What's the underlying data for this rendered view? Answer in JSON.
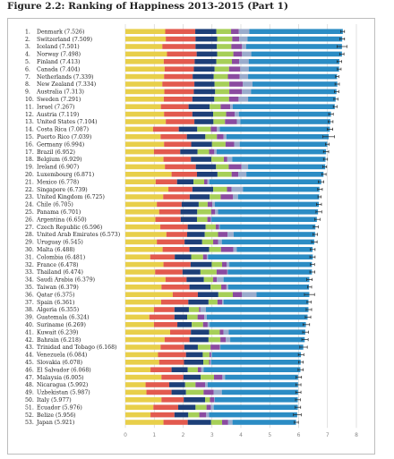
{
  "figure_title": "Figure 2.2: Ranking of Happiness 2013-2015 (Part 1)",
  "colors": {
    "segments": [
      "#e8cf4a",
      "#e25a4e",
      "#1d3f78",
      "#a6cf58",
      "#8a4ba0",
      "#9aaccc",
      "#2b8cc4"
    ],
    "error_bar": "#222222",
    "gridline": "#cccccc"
  },
  "chart_data": {
    "type": "bar",
    "orientation": "horizontal",
    "stacked": true,
    "title": "Ranking of Happiness 2013-2015 (Part 1)",
    "xlim": [
      0,
      8
    ],
    "x_ticks": [
      "0",
      "1",
      "2",
      "3",
      "4",
      "5",
      "6",
      "7",
      "8"
    ],
    "grid": true,
    "legend": "none",
    "ranks": [
      "1.",
      "2.",
      "3.",
      "4.",
      "5.",
      "6.",
      "7.",
      "8.",
      "9.",
      "10.",
      "11.",
      "12.",
      "13.",
      "14.",
      "15.",
      "16.",
      "17.",
      "18.",
      "19.",
      "20.",
      "21.",
      "22.",
      "23.",
      "24.",
      "25.",
      "26.",
      "27.",
      "28.",
      "29.",
      "30.",
      "31.",
      "32.",
      "33.",
      "34.",
      "35.",
      "36.",
      "37.",
      "38.",
      "39.",
      "40.",
      "41.",
      "42.",
      "43.",
      "44.",
      "45.",
      "46.",
      "47.",
      "48.",
      "49.",
      "50.",
      "51.",
      "52.",
      "53."
    ],
    "categories": [
      "Denmark (7.526)",
      "Switzerland (7.509)",
      "Iceland (7.501)",
      "Norway (7.498)",
      "Finland (7.413)",
      "Canada (7.404)",
      "Netherlands (7.339)",
      "New Zealand (7.334)",
      "Australia (7.313)",
      "Sweden (7.291)",
      "Israel (7.267)",
      "Austria (7.119)",
      "United States (7.104)",
      "Costa Rica (7.087)",
      "Puerto Rico (7.039)",
      "Germany (6.994)",
      "Brazil (6.952)",
      "Belgium (6.929)",
      "Ireland (6.907)",
      "Luxembourg (6.871)",
      "Mexico (6.778)",
      "Singapore (6.739)",
      "United Kingdom (6.725)",
      "Chile (6.705)",
      "Panama (6.701)",
      "Argentina (6.650)",
      "Czech Republic (6.596)",
      "United Arab Emirates (6.573)",
      "Uruguay (6.545)",
      "Malta (6.488)",
      "Colombia (6.481)",
      "France (6.478)",
      "Thailand (6.474)",
      "Saudi Arabia (6.379)",
      "Taiwan (6.379)",
      "Qatar (6.375)",
      "Spain (6.361)",
      "Algeria (6.355)",
      "Guatemala (6.324)",
      "Suriname (6.269)",
      "Kuwait (6.239)",
      "Bahrain (6.218)",
      "Trinidad and Tobago (6.168)",
      "Venezuela (6.084)",
      "Slovakia (6.078)",
      "El Salvador (6.068)",
      "Malaysia (6.005)",
      "Nicaragua (5.992)",
      "Uzbekistan (5.987)",
      "Italy (5.977)",
      "Ecuador (5.976)",
      "Belize (5.956)",
      "Japan (5.921)"
    ],
    "values": [
      7.526,
      7.509,
      7.501,
      7.498,
      7.413,
      7.404,
      7.339,
      7.334,
      7.313,
      7.291,
      7.267,
      7.119,
      7.104,
      7.087,
      7.039,
      6.994,
      6.952,
      6.929,
      6.907,
      6.871,
      6.778,
      6.739,
      6.725,
      6.705,
      6.701,
      6.65,
      6.596,
      6.573,
      6.545,
      6.488,
      6.481,
      6.478,
      6.474,
      6.379,
      6.379,
      6.375,
      6.361,
      6.355,
      6.324,
      6.269,
      6.239,
      6.218,
      6.168,
      6.084,
      6.078,
      6.068,
      6.005,
      5.992,
      5.987,
      5.977,
      5.976,
      5.956,
      5.921
    ],
    "segments": [
      [
        1.38,
        1.04,
        0.73,
        0.51,
        0.27,
        0.36,
        3.24
      ],
      [
        1.4,
        1.03,
        0.75,
        0.52,
        0.24,
        0.29,
        3.28
      ],
      [
        1.28,
        1.15,
        0.74,
        0.5,
        0.37,
        0.14,
        3.32
      ],
      [
        1.44,
        1.03,
        0.71,
        0.56,
        0.3,
        0.32,
        3.14
      ],
      [
        1.33,
        1.07,
        0.75,
        0.54,
        0.25,
        0.33,
        3.14
      ],
      [
        1.36,
        1.01,
        0.72,
        0.5,
        0.39,
        0.29,
        3.13
      ],
      [
        1.34,
        0.99,
        0.73,
        0.49,
        0.41,
        0.29,
        3.08
      ],
      [
        1.28,
        1.11,
        0.7,
        0.51,
        0.47,
        0.33,
        2.94
      ],
      [
        1.35,
        1.02,
        0.74,
        0.49,
        0.44,
        0.31,
        2.96
      ],
      [
        1.33,
        0.99,
        0.76,
        0.51,
        0.33,
        0.33,
        3.03
      ],
      [
        1.23,
        0.96,
        0.73,
        0.38,
        0.33,
        0.09,
        3.53
      ],
      [
        1.34,
        0.98,
        0.72,
        0.45,
        0.3,
        0.14,
        3.19
      ],
      [
        1.4,
        0.99,
        0.66,
        0.4,
        0.41,
        0.12,
        3.12
      ],
      [
        0.96,
        0.89,
        0.64,
        0.47,
        0.21,
        0.1,
        3.81
      ],
      [
        1.22,
        0.91,
        0.64,
        0.4,
        0.23,
        0.1,
        3.54
      ],
      [
        1.34,
        0.94,
        0.72,
        0.47,
        0.3,
        0.19,
        3.03
      ],
      [
        0.99,
        0.91,
        0.6,
        0.4,
        0.18,
        0.08,
        3.79
      ],
      [
        1.32,
        0.95,
        0.71,
        0.43,
        0.12,
        0.17,
        3.23
      ],
      [
        1.37,
        1.07,
        0.7,
        0.44,
        0.44,
        0.23,
        2.67
      ],
      [
        1.6,
        0.88,
        0.71,
        0.49,
        0.23,
        0.28,
        2.67
      ],
      [
        1.05,
        0.74,
        0.57,
        0.37,
        0.11,
        0.07,
        3.87
      ],
      [
        1.49,
        0.83,
        0.72,
        0.48,
        0.16,
        0.39,
        2.65
      ],
      [
        1.31,
        0.92,
        0.69,
        0.38,
        0.43,
        0.17,
        2.81
      ],
      [
        1.09,
        0.86,
        0.59,
        0.31,
        0.16,
        0.09,
        3.6
      ],
      [
        1.17,
        0.74,
        0.58,
        0.48,
        0.14,
        0.1,
        3.46
      ],
      [
        1.04,
        0.88,
        0.56,
        0.36,
        0.12,
        0.02,
        3.65
      ],
      [
        1.21,
        0.95,
        0.62,
        0.35,
        0.11,
        0.03,
        3.31
      ],
      [
        1.42,
        0.72,
        0.61,
        0.46,
        0.33,
        0.21,
        2.82
      ],
      [
        1.09,
        0.96,
        0.61,
        0.38,
        0.17,
        0.13,
        3.2
      ],
      [
        1.29,
        0.93,
        0.68,
        0.41,
        0.43,
        0.12,
        2.62
      ],
      [
        0.86,
        0.85,
        0.57,
        0.41,
        0.13,
        0.04,
        3.63
      ],
      [
        1.32,
        0.94,
        0.73,
        0.36,
        0.16,
        0.09,
        2.86
      ],
      [
        1.03,
        0.95,
        0.62,
        0.56,
        0.37,
        0.02,
        2.91
      ],
      [
        1.39,
        0.73,
        0.6,
        0.32,
        0.13,
        0.23,
        2.97
      ],
      [
        1.25,
        0.97,
        0.73,
        0.37,
        0.18,
        0.06,
        2.8
      ],
      [
        1.64,
        0.87,
        0.71,
        0.5,
        0.32,
        0.5,
        1.83
      ],
      [
        1.24,
        0.94,
        0.7,
        0.31,
        0.16,
        0.05,
        2.94
      ],
      [
        0.99,
        0.71,
        0.5,
        0.35,
        0.05,
        0.19,
        3.55
      ],
      [
        0.83,
        0.87,
        0.44,
        0.36,
        0.23,
        0.09,
        3.49
      ],
      [
        0.99,
        0.81,
        0.5,
        0.39,
        0.16,
        0.07,
        3.33
      ],
      [
        1.55,
        0.72,
        0.63,
        0.37,
        0.13,
        0.18,
        2.65
      ],
      [
        1.36,
        0.86,
        0.66,
        0.41,
        0.19,
        0.15,
        2.58
      ],
      [
        1.22,
        0.82,
        0.47,
        0.44,
        0.32,
        0.02,
        2.87
      ],
      [
        1.13,
        0.97,
        0.58,
        0.23,
        0.06,
        0.03,
        3.08
      ],
      [
        1.17,
        0.86,
        0.67,
        0.2,
        0.04,
        0.03,
        3.1
      ],
      [
        0.87,
        0.73,
        0.56,
        0.35,
        0.11,
        0.09,
        3.35
      ],
      [
        1.25,
        0.76,
        0.6,
        0.46,
        0.29,
        0.09,
        2.53
      ],
      [
        0.7,
        0.82,
        0.55,
        0.36,
        0.33,
        0.09,
        3.13
      ],
      [
        0.73,
        0.87,
        0.5,
        0.61,
        0.35,
        0.28,
        2.64
      ],
      [
        1.25,
        0.77,
        0.74,
        0.17,
        0.15,
        0.01,
        2.88
      ],
      [
        0.97,
        0.86,
        0.6,
        0.38,
        0.15,
        0.1,
        2.91
      ],
      [
        0.87,
        0.83,
        0.48,
        0.38,
        0.24,
        0.1,
        3.05
      ],
      [
        1.32,
        0.84,
        0.81,
        0.38,
        0.21,
        0.15,
        2.2
      ]
    ],
    "error_bars": [
      [
        7.46,
        7.59
      ],
      [
        7.43,
        7.59
      ],
      [
        7.33,
        7.67
      ],
      [
        7.42,
        7.57
      ],
      [
        7.33,
        7.49
      ],
      [
        7.34,
        7.47
      ],
      [
        7.28,
        7.39
      ],
      [
        7.26,
        7.41
      ],
      [
        7.24,
        7.39
      ],
      [
        7.22,
        7.36
      ],
      [
        7.2,
        7.33
      ],
      [
        7.04,
        7.2
      ],
      [
        7.02,
        7.19
      ],
      [
        6.99,
        7.18
      ],
      [
        6.84,
        7.24
      ],
      [
        6.93,
        7.06
      ],
      [
        6.86,
        7.04
      ],
      [
        6.86,
        7.0
      ],
      [
        6.84,
        6.97
      ],
      [
        6.8,
        6.95
      ],
      [
        6.68,
        6.87
      ],
      [
        6.66,
        6.82
      ],
      [
        6.67,
        6.78
      ],
      [
        6.62,
        6.79
      ],
      [
        6.6,
        6.8
      ],
      [
        6.56,
        6.74
      ],
      [
        6.51,
        6.68
      ],
      [
        6.5,
        6.65
      ],
      [
        6.45,
        6.64
      ],
      [
        6.4,
        6.57
      ],
      [
        6.39,
        6.57
      ],
      [
        6.41,
        6.55
      ],
      [
        6.39,
        6.56
      ],
      [
        6.28,
        6.47
      ],
      [
        6.31,
        6.45
      ],
      [
        6.2,
        6.55
      ],
      [
        6.29,
        6.43
      ],
      [
        6.26,
        6.45
      ],
      [
        6.23,
        6.42
      ],
      [
        6.15,
        6.38
      ],
      [
        6.14,
        6.34
      ],
      [
        6.11,
        6.33
      ],
      [
        6.04,
        6.3
      ],
      [
        5.99,
        6.18
      ],
      [
        6.0,
        6.16
      ],
      [
        5.98,
        6.16
      ],
      [
        5.91,
        6.1
      ],
      [
        5.9,
        6.08
      ],
      [
        5.9,
        6.08
      ],
      [
        5.89,
        6.06
      ],
      [
        5.88,
        6.07
      ],
      [
        5.82,
        6.09
      ],
      [
        5.85,
        5.99
      ]
    ]
  }
}
